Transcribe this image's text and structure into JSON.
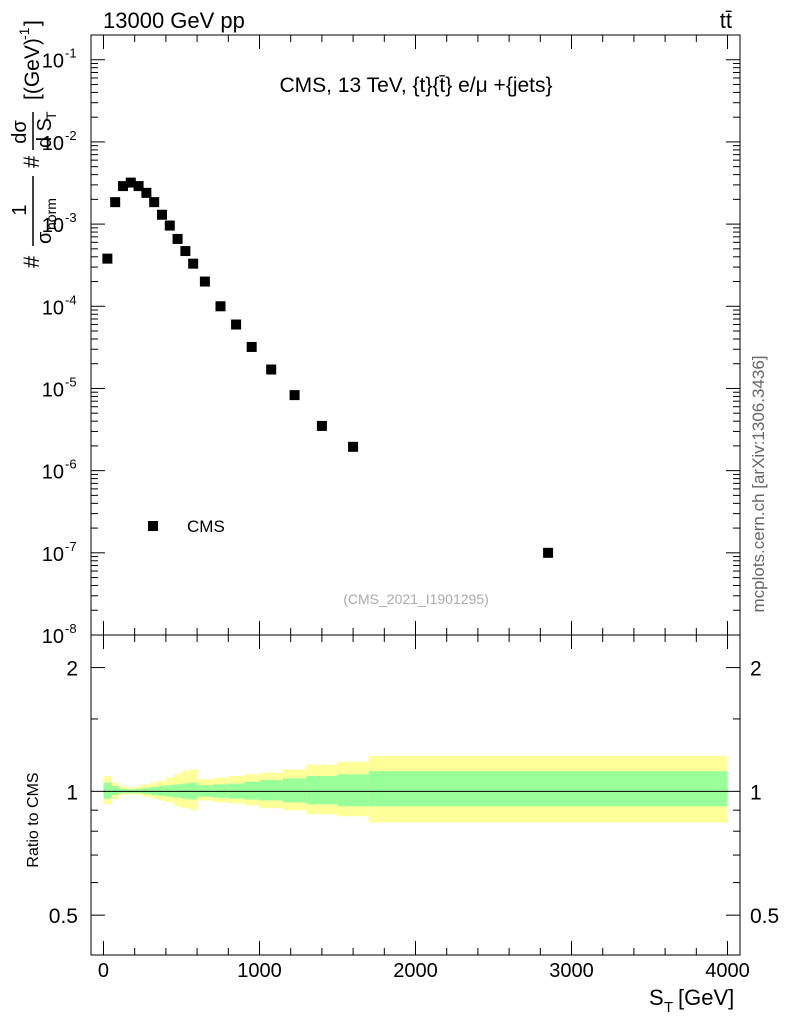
{
  "header": {
    "left": "13000 GeV pp",
    "right": "tt̄"
  },
  "side_label": "mcplots.cern.ch [arXiv:1306.3436]",
  "chart_data": [
    {
      "type": "scatter",
      "panel": "main",
      "title": "CMS, 13 TeV, {t}{t̄} e/μ +{jets}",
      "watermark": "(CMS_2021_I1901295)",
      "ylabel": "#1/σnorm #dσ/dST [(GeV)-1]",
      "ylabel_parts": {
        "hash1": "#",
        "one": "1",
        "sigma_norm": "σ",
        "norm_sub": "norm",
        "hash2": "#",
        "d_sigma": "dσ",
        "d_st": "d S",
        "st_sub": "T",
        "units": "[(GeV)",
        "units_sup": "-1",
        "units_close": "]"
      },
      "yscale": "log",
      "ylim": [
        1e-08,
        0.2
      ],
      "xlim": [
        -80,
        4080
      ],
      "ytick_labels": [
        {
          "base": "10",
          "exp": "-8",
          "value": 1e-08
        },
        {
          "base": "10",
          "exp": "-7",
          "value": 1e-07
        },
        {
          "base": "10",
          "exp": "-6",
          "value": 1e-06
        },
        {
          "base": "10",
          "exp": "-5",
          "value": 1e-05
        },
        {
          "base": "10",
          "exp": "-4",
          "value": 0.0001
        },
        {
          "base": "10",
          "exp": "-3",
          "value": 0.001
        },
        {
          "base": "10",
          "exp": "-2",
          "value": 0.01
        },
        {
          "base": "10",
          "exp": "-1",
          "value": 0.1
        }
      ],
      "legend": {
        "position": "bottom-left",
        "entries": [
          "CMS"
        ]
      },
      "series": [
        {
          "name": "CMS",
          "marker": "square",
          "points": [
            {
              "x": 25,
              "y": 0.00038
            },
            {
              "x": 75,
              "y": 0.00185
            },
            {
              "x": 125,
              "y": 0.0029
            },
            {
              "x": 175,
              "y": 0.0032
            },
            {
              "x": 225,
              "y": 0.0029
            },
            {
              "x": 275,
              "y": 0.0024
            },
            {
              "x": 325,
              "y": 0.00185
            },
            {
              "x": 375,
              "y": 0.0013
            },
            {
              "x": 425,
              "y": 0.00096
            },
            {
              "x": 475,
              "y": 0.00066
            },
            {
              "x": 525,
              "y": 0.00047
            },
            {
              "x": 575,
              "y": 0.00033
            },
            {
              "x": 650,
              "y": 0.0002
            },
            {
              "x": 750,
              "y": 0.0001
            },
            {
              "x": 850,
              "y": 6e-05
            },
            {
              "x": 950,
              "y": 3.2e-05
            },
            {
              "x": 1075,
              "y": 1.7e-05
            },
            {
              "x": 1225,
              "y": 8.3e-06
            },
            {
              "x": 1400,
              "y": 3.5e-06
            },
            {
              "x": 1600,
              "y": 1.95e-06
            },
            {
              "x": 2850,
              "y": 1e-07
            }
          ]
        }
      ]
    },
    {
      "type": "area",
      "panel": "ratio",
      "ylabel": "Ratio to CMS",
      "xlabel": "S",
      "xlabel_sub": "T",
      "xlabel_units": "[GeV]",
      "yscale": "log",
      "ylim": [
        0.4,
        2.4
      ],
      "xlim": [
        -80,
        4080
      ],
      "reference_line": 1,
      "ytick_labels": [
        {
          "label": "0.5",
          "value": 0.5
        },
        {
          "label": "1",
          "value": 1
        },
        {
          "label": "2",
          "value": 2
        }
      ],
      "xtick_labels": [
        {
          "label": "0",
          "value": 0
        },
        {
          "label": "1000",
          "value": 1000
        },
        {
          "label": "2000",
          "value": 2000
        },
        {
          "label": "3000",
          "value": 3000
        },
        {
          "label": "4000",
          "value": 4000
        }
      ],
      "band_colors": {
        "outer": "#ffff99",
        "inner": "#99ff99",
        "line": "#000000"
      },
      "bands": [
        {
          "x0": 0,
          "x1": 50,
          "outer": [
            0.93,
            1.09
          ],
          "inner": [
            0.96,
            1.05
          ]
        },
        {
          "x0": 50,
          "x1": 100,
          "outer": [
            0.96,
            1.05
          ],
          "inner": [
            0.98,
            1.03
          ]
        },
        {
          "x0": 100,
          "x1": 150,
          "outer": [
            0.98,
            1.03
          ],
          "inner": [
            0.99,
            1.015
          ]
        },
        {
          "x0": 150,
          "x1": 200,
          "outer": [
            0.985,
            1.02
          ],
          "inner": [
            0.99,
            1.01
          ]
        },
        {
          "x0": 200,
          "x1": 250,
          "outer": [
            0.98,
            1.03
          ],
          "inner": [
            0.99,
            1.015
          ]
        },
        {
          "x0": 250,
          "x1": 300,
          "outer": [
            0.97,
            1.04
          ],
          "inner": [
            0.985,
            1.02
          ]
        },
        {
          "x0": 300,
          "x1": 350,
          "outer": [
            0.96,
            1.05
          ],
          "inner": [
            0.98,
            1.025
          ]
        },
        {
          "x0": 350,
          "x1": 400,
          "outer": [
            0.95,
            1.06
          ],
          "inner": [
            0.975,
            1.03
          ]
        },
        {
          "x0": 400,
          "x1": 450,
          "outer": [
            0.94,
            1.08
          ],
          "inner": [
            0.97,
            1.035
          ]
        },
        {
          "x0": 450,
          "x1": 500,
          "outer": [
            0.92,
            1.1
          ],
          "inner": [
            0.965,
            1.04
          ]
        },
        {
          "x0": 500,
          "x1": 550,
          "outer": [
            0.91,
            1.12
          ],
          "inner": [
            0.96,
            1.045
          ]
        },
        {
          "x0": 550,
          "x1": 600,
          "outer": [
            0.9,
            1.13
          ],
          "inner": [
            0.955,
            1.05
          ]
        },
        {
          "x0": 600,
          "x1": 700,
          "outer": [
            0.95,
            1.07
          ],
          "inner": [
            0.97,
            1.035
          ]
        },
        {
          "x0": 700,
          "x1": 800,
          "outer": [
            0.94,
            1.08
          ],
          "inner": [
            0.965,
            1.04
          ]
        },
        {
          "x0": 800,
          "x1": 900,
          "outer": [
            0.935,
            1.09
          ],
          "inner": [
            0.96,
            1.045
          ]
        },
        {
          "x0": 900,
          "x1": 1000,
          "outer": [
            0.925,
            1.1
          ],
          "inner": [
            0.955,
            1.055
          ]
        },
        {
          "x0": 1000,
          "x1": 1150,
          "outer": [
            0.91,
            1.11
          ],
          "inner": [
            0.95,
            1.065
          ]
        },
        {
          "x0": 1150,
          "x1": 1300,
          "outer": [
            0.9,
            1.13
          ],
          "inner": [
            0.94,
            1.075
          ]
        },
        {
          "x0": 1300,
          "x1": 1500,
          "outer": [
            0.88,
            1.16
          ],
          "inner": [
            0.93,
            1.09
          ]
        },
        {
          "x0": 1500,
          "x1": 1700,
          "outer": [
            0.87,
            1.18
          ],
          "inner": [
            0.92,
            1.1
          ]
        },
        {
          "x0": 1700,
          "x1": 4000,
          "outer": [
            0.84,
            1.22
          ],
          "inner": [
            0.92,
            1.12
          ]
        }
      ]
    }
  ]
}
